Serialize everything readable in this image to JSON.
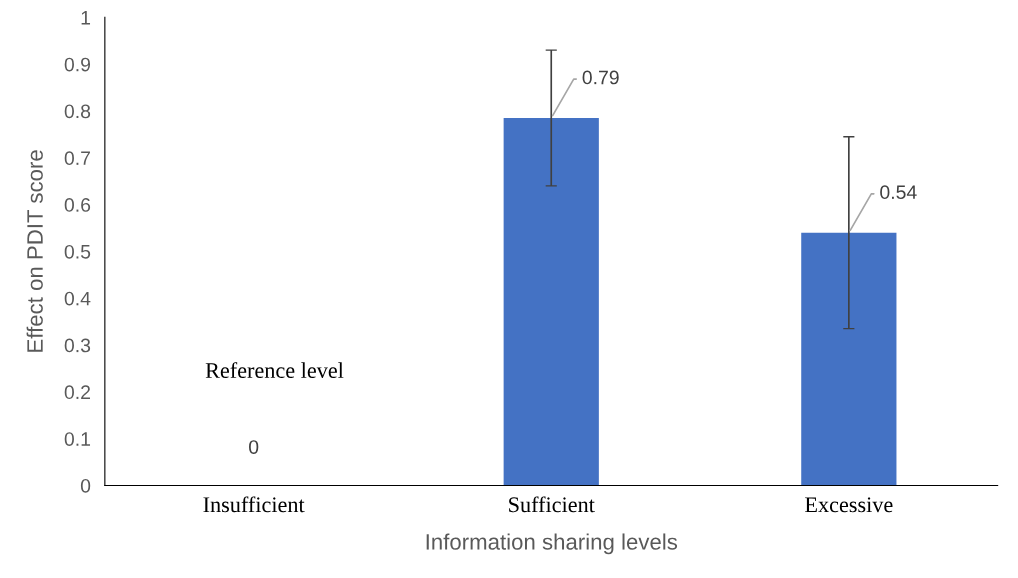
{
  "chart_data": {
    "type": "bar",
    "categories": [
      "Insufficient",
      "Sufficient",
      "Excessive"
    ],
    "values": [
      0,
      0.785,
      0.54
    ],
    "value_labels": [
      "0",
      "0.79",
      "0.54"
    ],
    "errors": [
      null,
      [
        0.64,
        0.93
      ],
      [
        0.335,
        0.745
      ]
    ],
    "color": "#4472c4",
    "xlabel": "Information sharing levels",
    "ylabel": "Effect on PDIT score",
    "ylim": [
      0,
      1
    ],
    "yticks": [
      0,
      0.1,
      0.2,
      0.3,
      0.4,
      0.5,
      0.6,
      0.7,
      0.8,
      0.9,
      1
    ],
    "annotations": [
      "Reference level"
    ],
    "grid": false
  }
}
